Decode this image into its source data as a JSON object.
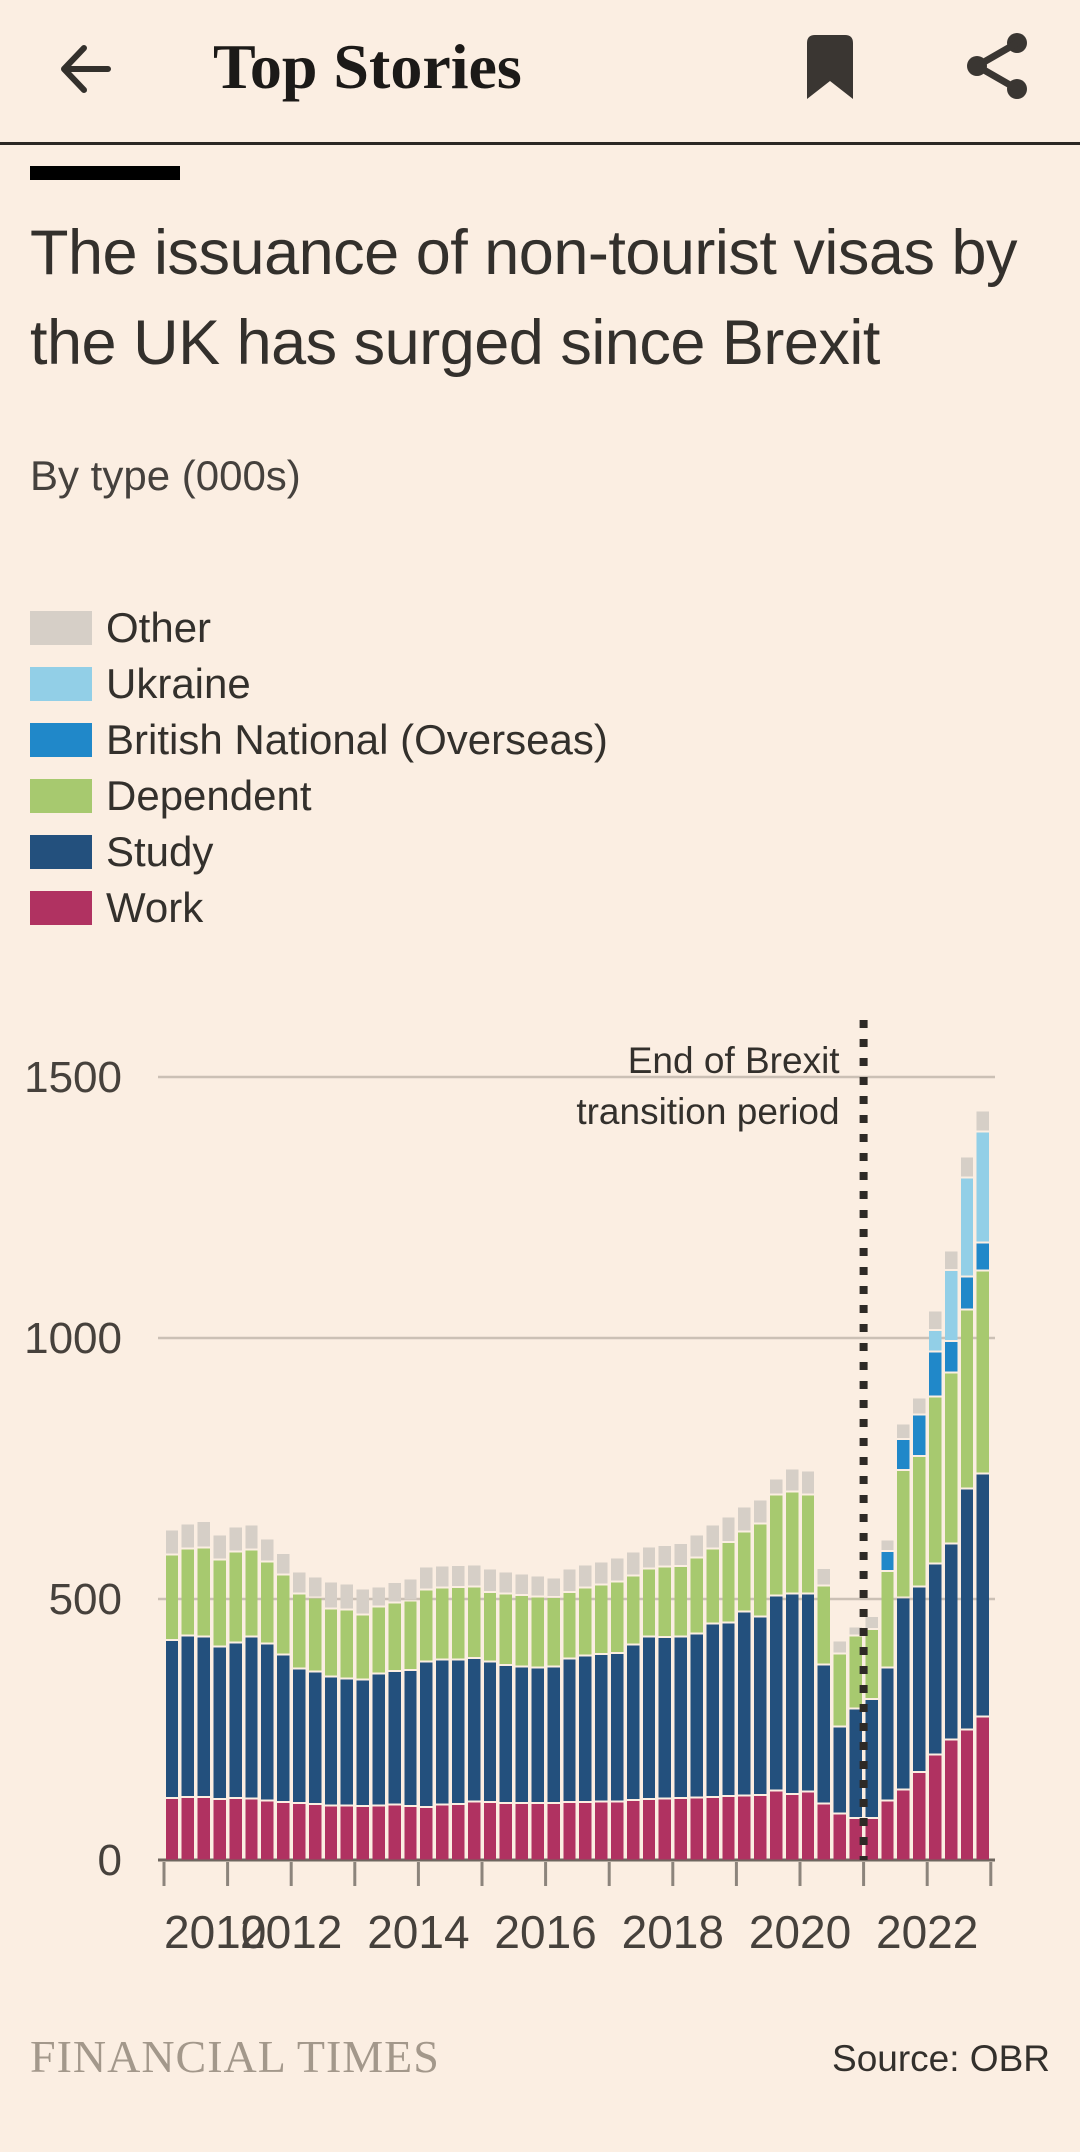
{
  "header": {
    "title": "Top Stories"
  },
  "article": {
    "headline": "The issuance of non-tourist visas by the UK has surged since Brexit",
    "subtitle": "By type (000s)"
  },
  "legend": [
    {
      "label": "Other",
      "color": "#D6CFC7"
    },
    {
      "label": "Ukraine",
      "color": "#92CFE7"
    },
    {
      "label": "British National (Overseas)",
      "color": "#2088C9"
    },
    {
      "label": "Dependent",
      "color": "#A7C96F"
    },
    {
      "label": "Study",
      "color": "#23507D"
    },
    {
      "label": "Work",
      "color": "#B03261"
    }
  ],
  "chart_data": {
    "type": "bar",
    "stacked": true,
    "title": "The issuance of non-tourist visas by the UK has surged since Brexit",
    "subtitle": "By type (000s)",
    "ylabel": "",
    "xlabel": "",
    "ylim": [
      0,
      1500
    ],
    "yticks": [
      0,
      500,
      1000,
      1500
    ],
    "xtick_labels": [
      "2010",
      "2012",
      "2014",
      "2016",
      "2018",
      "2020",
      "2022"
    ],
    "annotation": {
      "line1": "End of Brexit",
      "line2": "transition period",
      "x_position": "2021-01-01"
    },
    "grid": true,
    "legend_position": "top-left",
    "categories": [
      "2010 Q1",
      "2010 Q2",
      "2010 Q3",
      "2010 Q4",
      "2011 Q1",
      "2011 Q2",
      "2011 Q3",
      "2011 Q4",
      "2012 Q1",
      "2012 Q2",
      "2012 Q3",
      "2012 Q4",
      "2013 Q1",
      "2013 Q2",
      "2013 Q3",
      "2013 Q4",
      "2014 Q1",
      "2014 Q2",
      "2014 Q3",
      "2014 Q4",
      "2015 Q1",
      "2015 Q2",
      "2015 Q3",
      "2015 Q4",
      "2016 Q1",
      "2016 Q2",
      "2016 Q3",
      "2016 Q4",
      "2017 Q1",
      "2017 Q2",
      "2017 Q3",
      "2017 Q4",
      "2018 Q1",
      "2018 Q2",
      "2018 Q3",
      "2018 Q4",
      "2019 Q1",
      "2019 Q2",
      "2019 Q3",
      "2019 Q4",
      "2020 Q1",
      "2020 Q2",
      "2020 Q3",
      "2020 Q4",
      "2021 Q1",
      "2021 Q2",
      "2021 Q3",
      "2021 Q4",
      "2022 Q1",
      "2022 Q2",
      "2022 Q3",
      "2022 Q4"
    ],
    "series": [
      {
        "name": "Work",
        "color": "#B03261",
        "values": [
          120,
          122,
          122,
          118,
          120,
          119,
          115,
          112,
          110,
          108,
          106,
          106,
          105,
          106,
          107,
          105,
          103,
          107,
          108,
          113,
          112,
          110,
          110,
          110,
          110,
          112,
          112,
          113,
          113,
          116,
          118,
          119,
          120,
          121,
          122,
          124,
          125,
          126,
          134,
          128,
          132,
          109,
          90,
          82,
          82,
          115,
          136,
          170,
          203,
          232,
          251,
          276
        ]
      },
      {
        "name": "Study",
        "color": "#23507D",
        "values": [
          303,
          309,
          307,
          292,
          298,
          310,
          301,
          283,
          258,
          254,
          247,
          243,
          242,
          252,
          256,
          260,
          278,
          278,
          277,
          275,
          269,
          265,
          262,
          260,
          262,
          275,
          281,
          283,
          285,
          298,
          311,
          309,
          309,
          314,
          332,
          332,
          352,
          342,
          374,
          384,
          380,
          267,
          167,
          209,
          228,
          255,
          368,
          355,
          366,
          375,
          462,
          466
        ]
      },
      {
        "name": "Dependent",
        "color": "#A7C96F",
        "values": [
          163,
          167,
          171,
          167,
          174,
          167,
          157,
          153,
          144,
          142,
          130,
          132,
          124,
          129,
          131,
          133,
          138,
          138,
          139,
          137,
          134,
          137,
          137,
          136,
          133,
          128,
          130,
          133,
          137,
          132,
          131,
          135,
          135,
          146,
          144,
          154,
          153,
          178,
          193,
          195,
          189,
          151,
          140,
          140,
          134,
          185,
          244,
          250,
          320,
          328,
          343,
          388
        ]
      },
      {
        "name": "British National (Overseas)",
        "color": "#2088C9",
        "values": [
          0,
          0,
          0,
          0,
          0,
          0,
          0,
          0,
          0,
          0,
          0,
          0,
          0,
          0,
          0,
          0,
          0,
          0,
          0,
          0,
          0,
          0,
          0,
          0,
          0,
          0,
          0,
          0,
          0,
          0,
          0,
          0,
          0,
          0,
          0,
          0,
          0,
          0,
          0,
          0,
          0,
          0,
          0,
          0,
          0,
          38,
          60,
          80,
          86,
          60,
          63,
          54
        ]
      },
      {
        "name": "Ukraine",
        "color": "#92CFE7",
        "values": [
          0,
          0,
          0,
          0,
          0,
          0,
          0,
          0,
          0,
          0,
          0,
          0,
          0,
          0,
          0,
          0,
          0,
          0,
          0,
          0,
          0,
          0,
          0,
          0,
          0,
          0,
          0,
          0,
          0,
          0,
          0,
          0,
          0,
          0,
          0,
          0,
          0,
          0,
          0,
          0,
          0,
          0,
          0,
          0,
          0,
          0,
          0,
          0,
          41,
          136,
          190,
          213
        ]
      },
      {
        "name": "Other",
        "color": "#D6CFC7",
        "values": [
          48,
          48,
          51,
          48,
          48,
          48,
          44,
          41,
          42,
          40,
          52,
          50,
          50,
          38,
          40,
          42,
          44,
          42,
          42,
          42,
          45,
          42,
          41,
          40,
          37,
          45,
          44,
          44,
          46,
          46,
          42,
          42,
          44,
          44,
          46,
          49,
          48,
          46,
          31,
          44,
          46,
          34,
          25,
          17,
          25,
          22,
          29,
          32,
          38,
          38,
          40,
          40
        ]
      }
    ]
  },
  "footer": {
    "brand": "FINANCIAL TIMES",
    "source": "Source: OBR"
  }
}
